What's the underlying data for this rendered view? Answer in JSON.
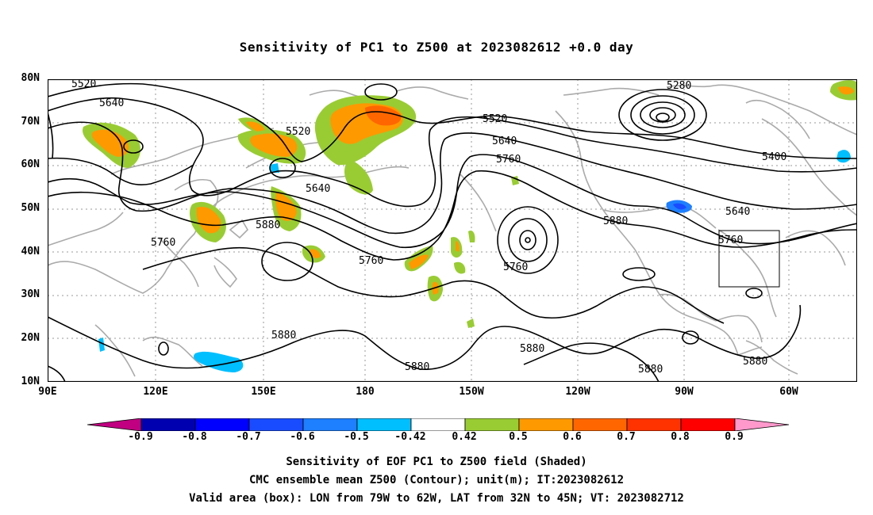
{
  "title": "Sensitivity of PC1 to Z500 at 2023082612 +0.0 day",
  "lat_labels": [
    "80N",
    "70N",
    "60N",
    "50N",
    "40N",
    "30N",
    "20N",
    "10N"
  ],
  "lon_labels": [
    "90E",
    "120E",
    "150E",
    "180",
    "150W",
    "120W",
    "90W",
    "60W"
  ],
  "contour_labels": [
    "5520",
    "5640",
    "5520",
    "5640",
    "5760",
    "5880",
    "5760",
    "5520",
    "5640",
    "5760",
    "5760",
    "5880",
    "5280",
    "5400",
    "5640",
    "5760",
    "5880",
    "5880",
    "5880",
    "5880",
    "5880"
  ],
  "colorbar": {
    "ticks": [
      "-0.9",
      "-0.8",
      "-0.7",
      "-0.6",
      "-0.5",
      "-0.42",
      "0.42",
      "0.5",
      "0.6",
      "0.7",
      "0.8",
      "0.9"
    ],
    "colors": [
      "#c00080",
      "#0000b0",
      "#0000ff",
      "#1a4cff",
      "#1e7fff",
      "#00bfff",
      "#ffffff",
      "#99cc33",
      "#ff9900",
      "#ff6600",
      "#ff3300",
      "#ff0000",
      "#ff99cc"
    ]
  },
  "footer": {
    "line1": "Sensitivity of EOF PC1 to Z500 field (Shaded)",
    "line2": "CMC ensemble mean Z500 (Contour); unit(m); IT:2023082612",
    "line3": "Valid area (box): LON from 79W to 62W, LAT from 32N to 45N; VT: 2023082712"
  }
}
